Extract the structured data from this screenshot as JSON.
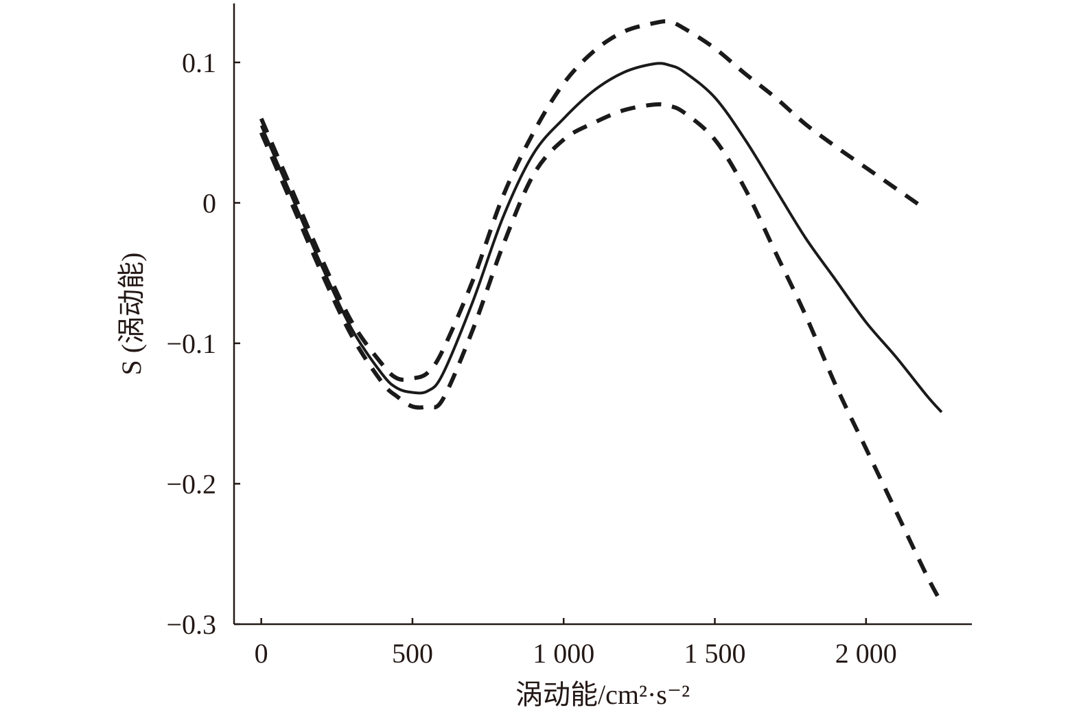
{
  "chart_data": {
    "type": "line",
    "title": "",
    "xlabel": "涡动能/cm²·s⁻²",
    "ylabel": "S (涡动能)",
    "xlim": [
      -90,
      2350
    ],
    "ylim": [
      -0.3,
      0.142
    ],
    "x_ticks": [
      0,
      500,
      1000,
      1500,
      2000
    ],
    "x_tick_labels": [
      "0",
      "500",
      "1 000",
      "1 500",
      "2 000"
    ],
    "y_ticks": [
      0.1,
      0,
      -0.1,
      -0.2,
      -0.3
    ],
    "y_tick_labels": [
      "0.1",
      "0",
      "−0.1",
      "−0.2",
      "−0.3"
    ],
    "grid": false,
    "legend": "none",
    "series": [
      {
        "style": "solid",
        "x": [
          0,
          100,
          200,
          300,
          400,
          450,
          500,
          550,
          600,
          700,
          800,
          900,
          1000,
          1100,
          1200,
          1300,
          1350,
          1400,
          1500,
          1600,
          1700,
          1800,
          1900,
          2000,
          2100,
          2200,
          2250
        ],
        "y": [
          0.055,
          0.005,
          -0.045,
          -0.09,
          -0.122,
          -0.132,
          -0.135,
          -0.134,
          -0.122,
          -0.07,
          -0.01,
          0.035,
          0.06,
          0.08,
          0.093,
          0.099,
          0.098,
          0.093,
          0.075,
          0.045,
          0.01,
          -0.025,
          -0.055,
          -0.085,
          -0.11,
          -0.137,
          -0.149
        ]
      },
      {
        "style": "dashed",
        "x": [
          0,
          100,
          200,
          300,
          400,
          450,
          500,
          550,
          600,
          700,
          800,
          900,
          1000,
          1100,
          1200,
          1300,
          1350,
          1400,
          1500,
          1600,
          1700,
          1800,
          1900,
          2000,
          2100,
          2200
        ],
        "y": [
          0.06,
          0.01,
          -0.04,
          -0.085,
          -0.115,
          -0.125,
          -0.125,
          -0.121,
          -0.105,
          -0.055,
          0.005,
          0.05,
          0.085,
          0.108,
          0.122,
          0.128,
          0.129,
          0.124,
          0.11,
          0.092,
          0.075,
          0.056,
          0.04,
          0.025,
          0.01,
          -0.005
        ]
      },
      {
        "style": "dashed",
        "x": [
          0,
          100,
          200,
          300,
          400,
          450,
          500,
          550,
          600,
          700,
          800,
          900,
          1000,
          1100,
          1200,
          1300,
          1350,
          1400,
          1500,
          1600,
          1700,
          1800,
          1900,
          2000,
          2100,
          2200,
          2250
        ],
        "y": [
          0.05,
          0.0,
          -0.05,
          -0.095,
          -0.128,
          -0.138,
          -0.145,
          -0.145,
          -0.14,
          -0.09,
          -0.03,
          0.02,
          0.045,
          0.057,
          0.066,
          0.07,
          0.069,
          0.064,
          0.045,
          0.01,
          -0.035,
          -0.08,
          -0.13,
          -0.175,
          -0.22,
          -0.265,
          -0.285
        ]
      }
    ]
  }
}
